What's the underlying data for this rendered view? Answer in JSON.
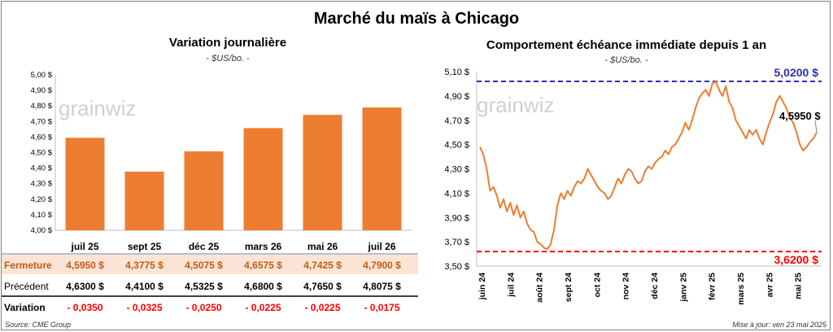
{
  "title": "Marché du maïs à Chicago",
  "watermark": "grainwiz",
  "left": {
    "title": "Variation journalière",
    "unit": "- $US/bo. -",
    "chart_data": {
      "type": "bar",
      "categories": [
        "juil 25",
        "sept 25",
        "déc 25",
        "mars 26",
        "mai 26",
        "juil 26"
      ],
      "values": [
        4.595,
        4.3775,
        4.5075,
        4.6575,
        4.7425,
        4.79
      ],
      "ylim": [
        4.0,
        5.0
      ],
      "yticks": [
        "4,00 $",
        "4,10 $",
        "4,20 $",
        "4,30 $",
        "4,40 $",
        "4,50 $",
        "4,60 $",
        "4,70 $",
        "4,80 $",
        "4,90 $",
        "5,00 $"
      ],
      "bar_color": "#ED7D31"
    },
    "table": {
      "rows": [
        {
          "label": "Fermeture",
          "values": [
            "4,5950 $",
            "4,3775 $",
            "4,5075 $",
            "4,6575 $",
            "4,7425 $",
            "4,7900 $"
          ]
        },
        {
          "label": "Précédent",
          "values": [
            "4,6300 $",
            "4,4100 $",
            "4,5325 $",
            "4,6800 $",
            "4,7650 $",
            "4,8075 $"
          ]
        },
        {
          "label": "Variation",
          "values": [
            "- 0,0350",
            "- 0,0325",
            "- 0,0250",
            "- 0,0225",
            "- 0,0225",
            "- 0,0175"
          ]
        }
      ],
      "label_colors": {
        "fermeture": "#C55A11",
        "variation": "#FF0000",
        "fermeture_bg": "#FBE4D5"
      }
    }
  },
  "right": {
    "title": "Comportement échéance immédiate depuis 1 an",
    "unit": "- $US/bo. -",
    "chart_data": {
      "type": "line",
      "ylim": [
        3.5,
        5.1
      ],
      "yticks": [
        "3,50 $",
        "3,70 $",
        "3,90 $",
        "4,10 $",
        "4,30 $",
        "4,50 $",
        "4,70 $",
        "4,90 $",
        "5,10 $"
      ],
      "xticks": [
        "juin 24",
        "juil 24",
        "août 24",
        "sept 24",
        "oct 24",
        "nov 24",
        "déc 24",
        "janv 25",
        "févr 25",
        "mars 25",
        "avr 25",
        "mai 25"
      ],
      "series": [
        {
          "color": "#ED7D31",
          "values": [
            4.48,
            4.42,
            4.3,
            4.12,
            4.15,
            4.08,
            3.98,
            4.05,
            3.95,
            4.02,
            3.92,
            4.0,
            3.9,
            3.95,
            3.85,
            3.8,
            3.78,
            3.7,
            3.68,
            3.65,
            3.64,
            3.68,
            3.8,
            4.0,
            4.1,
            4.05,
            4.12,
            4.08,
            4.15,
            4.2,
            4.18,
            4.22,
            4.3,
            4.25,
            4.2,
            4.15,
            4.12,
            4.1,
            4.05,
            4.08,
            4.15,
            4.22,
            4.18,
            4.25,
            4.3,
            4.28,
            4.22,
            4.18,
            4.2,
            4.28,
            4.32,
            4.3,
            4.35,
            4.38,
            4.4,
            4.45,
            4.42,
            4.48,
            4.5,
            4.55,
            4.6,
            4.68,
            4.62,
            4.7,
            4.8,
            4.88,
            4.92,
            4.95,
            4.9,
            5.0,
            5.02,
            4.95,
            4.9,
            4.98,
            4.85,
            4.8,
            4.7,
            4.65,
            4.6,
            4.55,
            4.62,
            4.58,
            4.62,
            4.55,
            4.5,
            4.6,
            4.68,
            4.75,
            4.85,
            4.9,
            4.85,
            4.8,
            4.72,
            4.68,
            4.6,
            4.5,
            4.45,
            4.48,
            4.52,
            4.55,
            4.6
          ]
        }
      ],
      "hlines": [
        {
          "value": 5.02,
          "label": "5,0200 $",
          "color": "#2E2EB8"
        },
        {
          "value": 3.62,
          "label": "3,6200 $",
          "color": "#FF0000"
        }
      ],
      "last_label": "4,5950 $"
    }
  },
  "footer": {
    "source": "Source: CME Group",
    "update": "Mise à jour: ven 23 mai 2025"
  }
}
